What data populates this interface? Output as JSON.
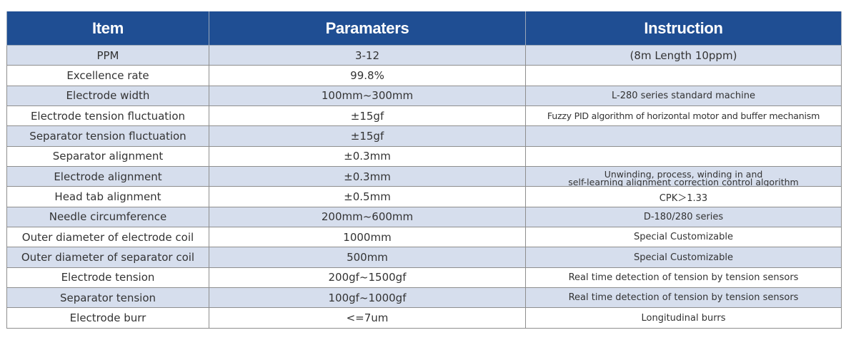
{
  "table": {
    "headers": [
      "Item",
      "Paramaters",
      "Instruction"
    ],
    "rows": [
      {
        "item": "PPM",
        "param": "3-12",
        "instr": "(8m Length 10ppm)"
      },
      {
        "item": "Excellence rate",
        "param": "99.8%",
        "instr": ""
      },
      {
        "item": "Electrode width",
        "param": "100mm~300mm",
        "instr": "L-280 series standard machine"
      },
      {
        "item": "Electrode tension fluctuation",
        "param": "±15gf",
        "instr": "Fuzzy PID algorithm of horizontal motor and buffer mechanism"
      },
      {
        "item": "Separator tension fluctuation",
        "param": "±15gf",
        "instr": ""
      },
      {
        "item": "Separator alignment",
        "param": "±0.3mm",
        "instr": ""
      },
      {
        "item": "Electrode alignment",
        "param": "±0.3mm",
        "instr_lines": [
          "Unwinding, process, winding in and",
          "self-learning alignment correction control algorithm"
        ]
      },
      {
        "item": "Head tab alignment",
        "param": "±0.5mm",
        "instr": "CPK＞1.33"
      },
      {
        "item": "Needle circumference",
        "param": "200mm~600mm",
        "instr": "D-180/280 series"
      },
      {
        "item": "Outer diameter of electrode coil",
        "param": "1000mm",
        "instr": "Special Customizable"
      },
      {
        "item": "Outer diameter of separator coil",
        "param": "500mm",
        "instr": "Special Customizable"
      },
      {
        "item": "Electrode tension",
        "param": "200gf~1500gf",
        "instr": "Real time detection of tension by tension sensors"
      },
      {
        "item": "Separator tension",
        "param": "100gf~1000gf",
        "instr": "Real time detection of tension by tension sensors"
      },
      {
        "item": "Electrode burr",
        "param": "<=7um",
        "instr": "Longitudinal burrs"
      }
    ]
  },
  "colors": {
    "header_bg": "#1f4e93",
    "shade_row": "#d6deed",
    "plain_row": "#ffffff"
  }
}
